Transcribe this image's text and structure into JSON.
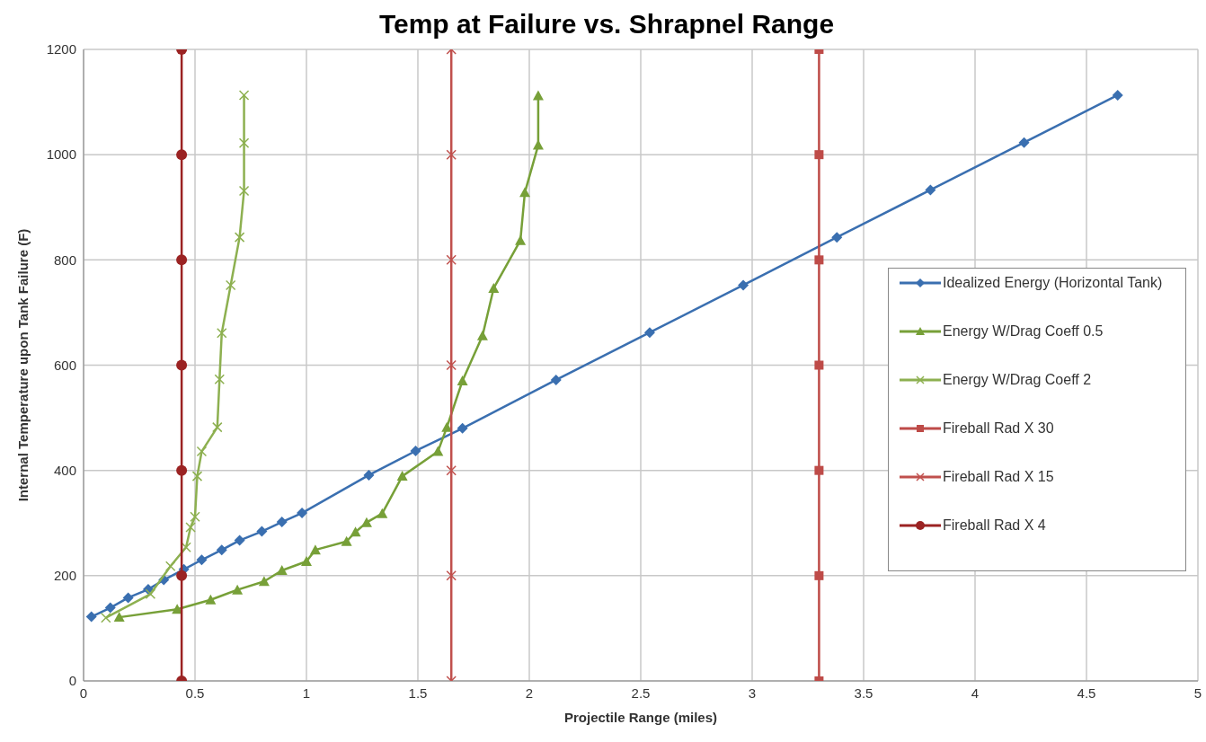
{
  "chart_data": {
    "type": "line",
    "title": "Temp at Failure vs. Shrapnel Range",
    "xlabel": "Projectile Range (miles)",
    "ylabel": "Internal Temperature upon Tank Failure (F)",
    "xlim": [
      0,
      5
    ],
    "xticks": [
      0,
      0.5,
      1,
      1.5,
      2,
      2.5,
      3,
      3.5,
      4,
      4.5,
      5
    ],
    "ylim": [
      0,
      1200
    ],
    "yticks": [
      0,
      200,
      400,
      600,
      800,
      1000,
      1200
    ],
    "grid": true,
    "legend": "right",
    "line_style": "solid",
    "series": [
      {
        "name": "Idealized Energy (Horizontal Tank)",
        "color": "#3a6fb0",
        "marker": "diamond",
        "x": [
          0.035,
          0.12,
          0.2,
          0.29,
          0.36,
          0.45,
          0.53,
          0.62,
          0.7,
          0.8,
          0.89,
          0.98,
          1.28,
          1.49,
          1.7,
          2.12,
          2.54,
          2.96,
          3.38,
          3.8,
          4.22,
          4.64
        ],
        "values": [
          122,
          139,
          158,
          174,
          192,
          212,
          230,
          249,
          267,
          284,
          302,
          319,
          391,
          437,
          480,
          572,
          662,
          752,
          843,
          933,
          1023,
          1113
        ]
      },
      {
        "name": "Energy W/Drag Coeff 0.5",
        "color": "#77a038",
        "marker": "triangle",
        "x": [
          0.16,
          0.42,
          0.57,
          0.69,
          0.81,
          0.89,
          1.0,
          1.04,
          1.18,
          1.22,
          1.27,
          1.34,
          1.43,
          1.59,
          1.63,
          1.7,
          1.79,
          1.84,
          1.96,
          1.98,
          2.04,
          2.04
        ],
        "values": [
          121,
          136,
          154,
          173,
          189,
          210,
          227,
          249,
          265,
          283,
          301,
          318,
          389,
          436,
          482,
          570,
          656,
          746,
          837,
          928,
          1018,
          1112
        ]
      },
      {
        "name": "Energy W/Drag Coeff 2",
        "color": "#8db050",
        "marker": "cross",
        "x": [
          0.1,
          0.3,
          0.39,
          0.46,
          0.48,
          0.5,
          0.51,
          0.53,
          0.6,
          0.61,
          0.62,
          0.66,
          0.7,
          0.72,
          0.72,
          0.72
        ],
        "values": [
          120,
          165,
          218,
          254,
          292,
          312,
          389,
          436,
          482,
          573,
          661,
          752,
          843,
          931,
          1022,
          1113
        ]
      },
      {
        "name": "Fireball Rad X 30",
        "color": "#be4b48",
        "marker": "square",
        "x": [
          3.3,
          3.3,
          3.3,
          3.3,
          3.3,
          3.3,
          3.3
        ],
        "values": [
          0,
          200,
          400,
          600,
          800,
          1000,
          1200
        ]
      },
      {
        "name": "Fireball Rad X 15",
        "color": "#c0504d",
        "marker": "cross",
        "x": [
          1.65,
          1.65,
          1.65,
          1.65,
          1.65,
          1.65,
          1.65
        ],
        "values": [
          0,
          200,
          400,
          600,
          800,
          1000,
          1200
        ]
      },
      {
        "name": "Fireball Rad X 4",
        "color": "#9b2323",
        "marker": "circle",
        "x": [
          0.44,
          0.44,
          0.44,
          0.44,
          0.44,
          0.44,
          0.44
        ],
        "values": [
          0,
          200,
          400,
          600,
          800,
          1000,
          1200
        ]
      }
    ]
  }
}
